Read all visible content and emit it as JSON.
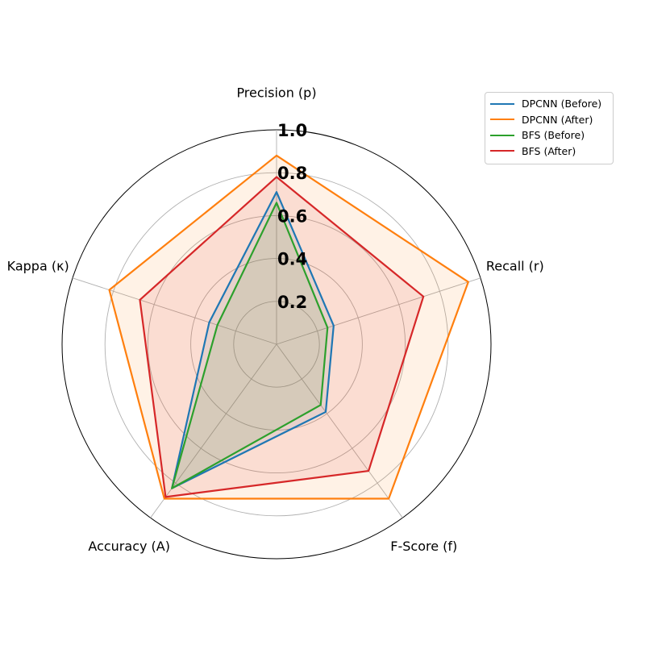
{
  "chart_data": {
    "type": "radar",
    "axes": [
      "Precision (p)",
      "Recall (r)",
      "F-Score (f)",
      "Accuracy (A)",
      "Kappa (κ)"
    ],
    "rlim": [
      0,
      1.0
    ],
    "rticks": [
      "0.2",
      "0.4",
      "0.6",
      "0.8",
      "1.0"
    ],
    "rtick_values": [
      0.2,
      0.4,
      0.6,
      0.8,
      1.0
    ],
    "grid": true,
    "legend_position": "top-right",
    "series": [
      {
        "name": "DPCNN (Before)",
        "color": "#1f77b4",
        "values": [
          0.71,
          0.28,
          0.39,
          0.83,
          0.33
        ]
      },
      {
        "name": "DPCNN (After)",
        "color": "#ff7f0e",
        "values": [
          0.88,
          0.94,
          0.89,
          0.89,
          0.82
        ]
      },
      {
        "name": "BFS (Before)",
        "color": "#2ca02c",
        "values": [
          0.66,
          0.25,
          0.35,
          0.83,
          0.29
        ]
      },
      {
        "name": "BFS (After)",
        "color": "#d62728",
        "values": [
          0.78,
          0.72,
          0.73,
          0.88,
          0.67
        ]
      }
    ]
  }
}
